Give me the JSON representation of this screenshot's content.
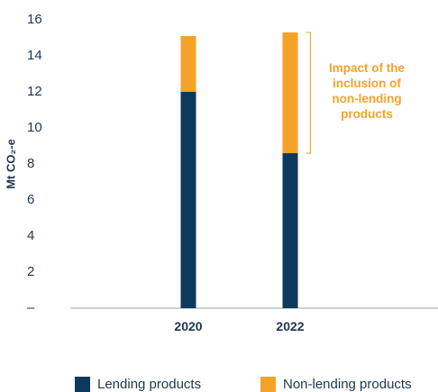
{
  "chart_data": {
    "type": "bar",
    "stacked": true,
    "categories": [
      "2020",
      "2022"
    ],
    "series": [
      {
        "name": "Lending products",
        "color": "#0d3a5c",
        "values": [
          12,
          8.6
        ]
      },
      {
        "name": "Non-lending products",
        "color": "#f6a229",
        "values": [
          3.1,
          6.7
        ]
      }
    ],
    "ylabel": "Mt CO₂-e",
    "ylim": [
      0,
      16
    ],
    "yticks": [
      {
        "value": 0,
        "label": "–"
      },
      {
        "value": 2,
        "label": "2"
      },
      {
        "value": 4,
        "label": "4"
      },
      {
        "value": 6,
        "label": "6"
      },
      {
        "value": 8,
        "label": "8"
      },
      {
        "value": 10,
        "label": "10"
      },
      {
        "value": 12,
        "label": "12"
      },
      {
        "value": 14,
        "label": "14"
      },
      {
        "value": 16,
        "label": "16"
      }
    ],
    "grid": false,
    "legend_position": "bottom",
    "annotation": {
      "lines": [
        "Impact of the",
        "inclusion of",
        "non-lending",
        "products"
      ],
      "color": "#f6a229",
      "bracket_category": "2022",
      "bracket_from": 8.6,
      "bracket_to": 15.3
    }
  }
}
